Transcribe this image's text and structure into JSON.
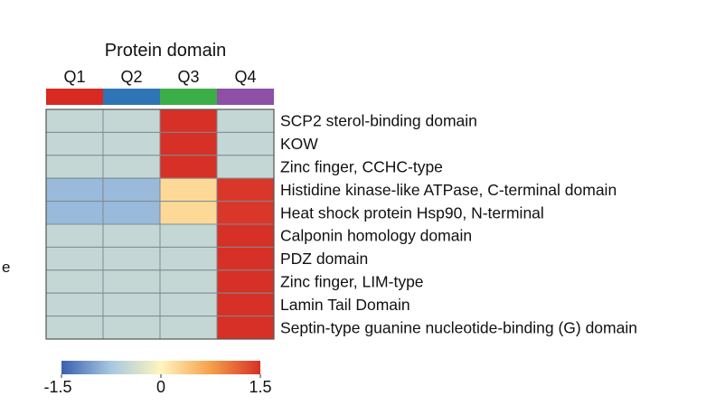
{
  "chart_data": {
    "type": "heatmap",
    "title": "Protein domain",
    "columns": [
      "Q1",
      "Q2",
      "Q3",
      "Q4"
    ],
    "column_colors": [
      "#d62a22",
      "#2f74b5",
      "#3cae48",
      "#8e4fa6"
    ],
    "rows": [
      "SCP2 sterol-binding domain",
      "KOW",
      "Zinc finger, CCHC-type",
      "Histidine kinase-like ATPase, C-terminal domain",
      "Heat shock protein Hsp90, N-terminal",
      "Calponin homology domain",
      "PDZ domain",
      "Zinc finger, LIM-type",
      "Lamin Tail Domain",
      "Septin-type guanine nucleotide-binding (G) domain"
    ],
    "values": [
      [
        -0.5,
        -0.5,
        1.5,
        -0.5
      ],
      [
        -0.5,
        -0.5,
        1.5,
        -0.5
      ],
      [
        -0.5,
        -0.5,
        1.5,
        -0.5
      ],
      [
        -0.85,
        -0.85,
        0.25,
        1.45
      ],
      [
        -0.85,
        -0.85,
        0.25,
        1.45
      ],
      [
        -0.5,
        -0.5,
        -0.5,
        1.5
      ],
      [
        -0.5,
        -0.5,
        -0.5,
        1.5
      ],
      [
        -0.5,
        -0.5,
        -0.5,
        1.5
      ],
      [
        -0.5,
        -0.5,
        -0.5,
        1.5
      ],
      [
        -0.5,
        -0.5,
        -0.5,
        1.5
      ]
    ],
    "color_scale": {
      "min": -1.5,
      "max": 1.5,
      "colors": [
        "#3a5fb0",
        "#a8c8e0",
        "#fff5be",
        "#f5a04a",
        "#d73027"
      ],
      "ticks": [
        "-1.5",
        "0",
        "1.5"
      ]
    },
    "stray_label": "e"
  }
}
